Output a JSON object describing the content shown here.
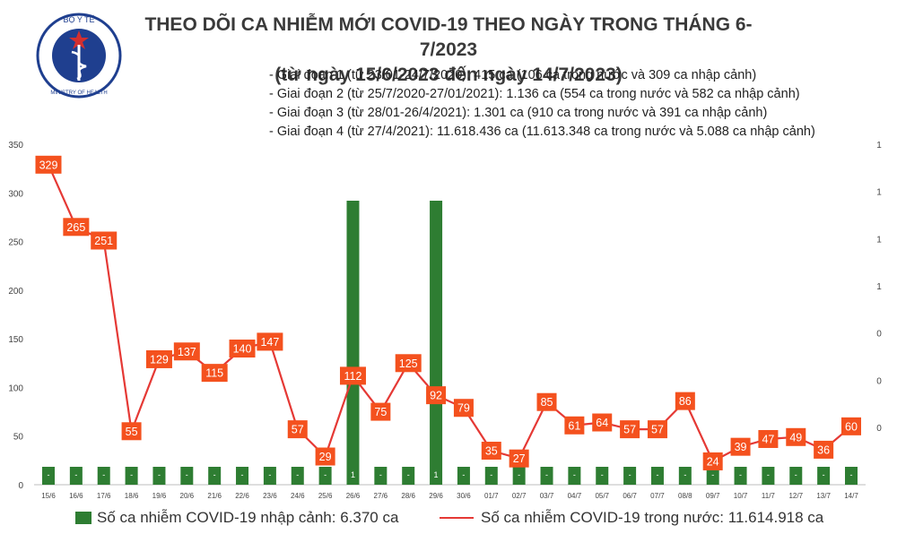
{
  "header": {
    "logo_top_text": "BỘ Y TẾ",
    "logo_bottom_text": "MINISTRY OF HEALTH",
    "title_line1": "THEO DÕI CA NHIỄM MỚI COVID-19 THEO NGÀY TRONG THÁNG 6-7/2023",
    "title_line2": "(từ ngày 15/6/2023 đến ngày 14/7/2023)"
  },
  "notes": [
    "- Giai đoạn 1 (từ 23/01-24/7/2020): 415 ca (106 ca trong nước và 309 ca nhập cảnh)",
    "- Giai đoạn 2 (từ 25/7/2020-27/01/2021): 1.136 ca (554 ca trong nước và 582 ca nhập cảnh)",
    "- Giai đoạn 3 (từ 28/01-26/4/2021): 1.301 ca (910 ca trong nước và 391 ca nhập cảnh)",
    "- Giai đoạn 4 (từ 27/4/2021): 11.618.436 ca (11.613.348 ca trong nước và 5.088 ca nhập cảnh)"
  ],
  "legend": {
    "bar_label": "Số ca nhiễm COVID-19 nhập cảnh: 6.370 ca",
    "line_label": "Số ca nhiễm COVID-19 trong nước: 11.614.918 ca"
  },
  "colors": {
    "bar": "#2e7d32",
    "line": "#e53935",
    "label_bg": "#f4511e"
  },
  "chart_data": {
    "type": "bar+line",
    "categories": [
      "15/6",
      "16/6",
      "17/6",
      "18/6",
      "19/6",
      "20/6",
      "21/6",
      "22/6",
      "23/6",
      "24/6",
      "25/6",
      "26/6",
      "27/6",
      "28/6",
      "29/6",
      "30/6",
      "01/7",
      "02/7",
      "03/7",
      "04/7",
      "05/7",
      "06/7",
      "07/7",
      "08/8",
      "09/7",
      "10/7",
      "11/7",
      "12/7",
      "13/7",
      "14/7"
    ],
    "series": [
      {
        "name": "Số ca nhiễm COVID-19 trong nước",
        "type": "line",
        "axis": "left",
        "values": [
          329,
          265,
          251,
          55,
          129,
          137,
          115,
          140,
          147,
          57,
          29,
          112,
          75,
          125,
          92,
          79,
          35,
          27,
          85,
          61,
          64,
          57,
          57,
          86,
          24,
          39,
          47,
          49,
          36,
          60
        ]
      },
      {
        "name": "Số ca nhiễm COVID-19 nhập cảnh",
        "type": "bar",
        "axis": "right",
        "values": [
          0,
          0,
          0,
          0,
          0,
          0,
          0,
          0,
          0,
          0,
          0,
          1,
          0,
          0,
          1,
          0,
          0,
          0,
          0,
          0,
          0,
          0,
          0,
          0,
          0,
          0,
          0,
          0,
          0,
          0
        ],
        "labels": [
          "-",
          "-",
          "-",
          "-",
          "-",
          "-",
          "-",
          "-",
          "-",
          "-",
          "-",
          "1",
          "-",
          "-",
          "1",
          "-",
          "-",
          "-",
          "-",
          "-",
          "-",
          "-",
          "-",
          "-",
          "-",
          "-",
          "-",
          "-",
          "-",
          "-"
        ]
      }
    ],
    "y_left": {
      "ylim": [
        0,
        350
      ],
      "ticks": [
        "0",
        "50",
        "100",
        "150",
        "200",
        "250",
        "300",
        "350"
      ]
    },
    "y_right": {
      "ticks": [
        "0",
        "0",
        "0",
        "1",
        "1",
        "1",
        "1"
      ]
    },
    "grid": false,
    "legend_position": "bottom"
  }
}
